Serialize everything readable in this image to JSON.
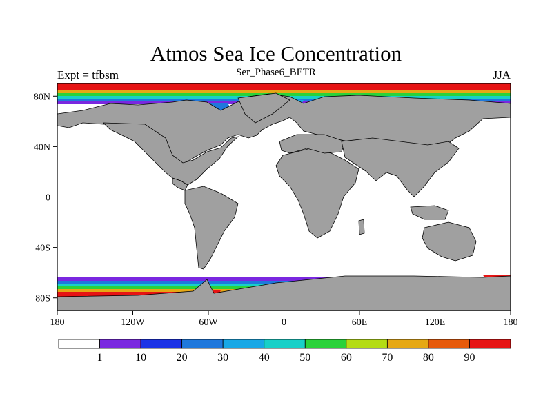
{
  "title": "Atmos Sea Ice Concentration",
  "subtitle": "Ser_Phase6_BETR",
  "left_label": "Expt = tfbsm",
  "right_label": "JJA",
  "map": {
    "projection": "cylindrical equidistant",
    "lon_range": [
      -180,
      180
    ],
    "lat_range": [
      -90,
      90
    ],
    "land_color": "#a0a0a0",
    "ocean_color": "#ffffff",
    "x_ticks": [
      {
        "lon": -180,
        "label": "180"
      },
      {
        "lon": -120,
        "label": "120W"
      },
      {
        "lon": -60,
        "label": "60W"
      },
      {
        "lon": 0,
        "label": "0"
      },
      {
        "lon": 60,
        "label": "60E"
      },
      {
        "lon": 120,
        "label": "120E"
      },
      {
        "lon": 180,
        "label": "180"
      }
    ],
    "y_ticks": [
      {
        "lat": 80,
        "label": "80N"
      },
      {
        "lat": 40,
        "label": "40N"
      },
      {
        "lat": 0,
        "label": "0"
      },
      {
        "lat": -40,
        "label": "40S"
      },
      {
        "lat": -80,
        "label": "80S"
      }
    ]
  },
  "colorbar": {
    "colors": [
      "#ffffff",
      "#7a28e0",
      "#1b32e6",
      "#1f78dc",
      "#18a8e6",
      "#18d0c8",
      "#2ad23a",
      "#b4dc14",
      "#e6a814",
      "#e65a0a",
      "#e61414"
    ],
    "labels": [
      "1",
      "10",
      "20",
      "30",
      "40",
      "50",
      "60",
      "70",
      "80",
      "90"
    ]
  }
}
